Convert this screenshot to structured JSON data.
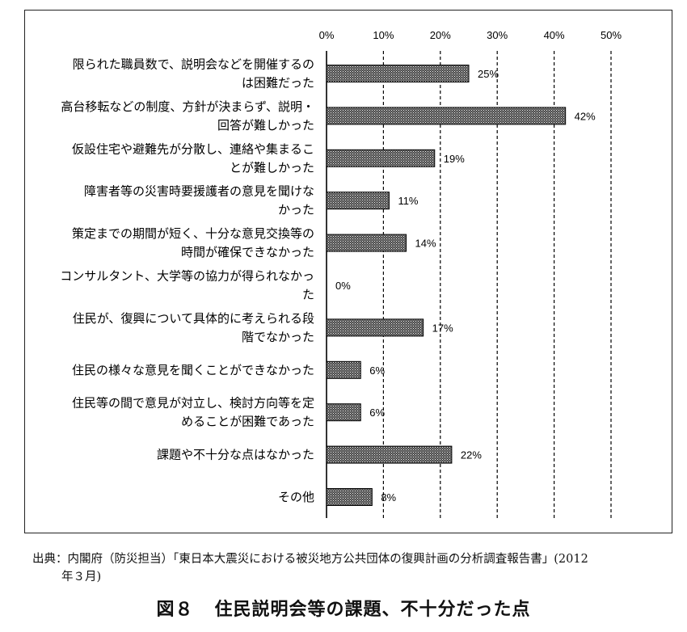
{
  "chart_data": {
    "type": "bar",
    "orientation": "horizontal",
    "categories": [
      [
        "限られた職員数で、説明会などを開催するの",
        "は困難だった"
      ],
      [
        "高台移転などの制度、方針が決まらず、説明・",
        "回答が難しかった"
      ],
      [
        "仮設住宅や避難先が分散し、連絡や集まるこ",
        "とが難しかった"
      ],
      [
        "障害者等の災害時要援護者の意見を聞けな",
        "かった"
      ],
      [
        "策定までの期間が短く、十分な意見交換等の",
        "時間が確保できなかった"
      ],
      [
        "コンサルタント、大学等の協力が得られなかっ",
        "た"
      ],
      [
        "住民が、復興について具体的に考えられる段",
        "階でなかった"
      ],
      [
        "住民の様々な意見を聞くことができなかった"
      ],
      [
        "住民等の間で意見が対立し、検討方向等を定",
        "めることが困難であった"
      ],
      [
        "課題や不十分な点はなかった"
      ],
      [
        "その他"
      ]
    ],
    "values": [
      25,
      42,
      19,
      11,
      14,
      0,
      17,
      6,
      6,
      22,
      8
    ],
    "data_labels": [
      "25%",
      "42%",
      "19%",
      "11%",
      "14%",
      "0%",
      "17%",
      "6%",
      "6%",
      "22%",
      "8%"
    ],
    "xlim": [
      0,
      50
    ],
    "x_ticks": [
      "0%",
      "10%",
      "20%",
      "30%",
      "40%",
      "50%"
    ],
    "x_axis_position": "top",
    "grid": "vertical dashed",
    "bar_pattern": "dotted hatch"
  },
  "source": {
    "line1": "出典：内閣府（防災担当）「東日本大震災における被災地方公共団体の復興計画の分析調査報告書」(2012",
    "line2": "年３月)"
  },
  "figure": {
    "number": "図８",
    "title": "住民説明会等の課題、不十分だった点"
  }
}
